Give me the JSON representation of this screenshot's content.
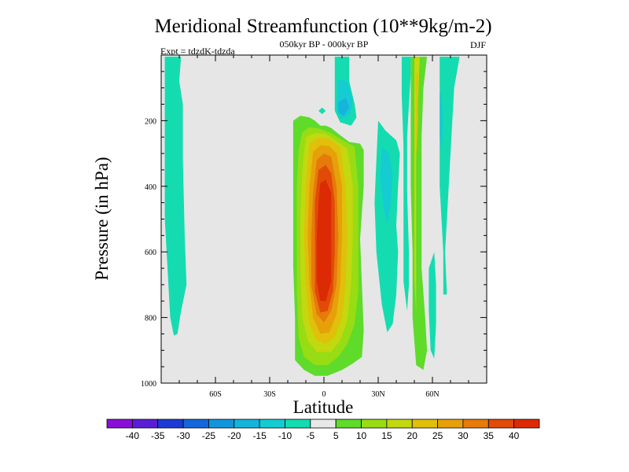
{
  "chart_data": {
    "type": "contour",
    "title": "Meridional Streamfunction (10**9kg/m-2)",
    "subtitle_center": "050kyr BP - 000kyr BP",
    "subtitle_left": "Expt = tdzdK-tdzda",
    "subtitle_right": "DJF",
    "xlabel": "Latitude",
    "ylabel": "Pressure (in hPa)",
    "xlim": [
      -90,
      90
    ],
    "ylim": [
      1000,
      0
    ],
    "xticks": [
      -60,
      -30,
      0,
      30,
      60
    ],
    "xtick_labels": [
      "60S",
      "30S",
      "0",
      "30N",
      "60N"
    ],
    "yticks": [
      200,
      400,
      600,
      800,
      1000
    ],
    "ytick_labels": [
      "200",
      "400",
      "600",
      "800",
      "1000"
    ],
    "background_color": "#e6e6e6",
    "colorbar": {
      "labels": [
        "-40",
        "-35",
        "-30",
        "-25",
        "-20",
        "-15",
        "-10",
        "-5",
        "5",
        "10",
        "15",
        "20",
        "25",
        "30",
        "35",
        "40"
      ],
      "colors": [
        "#8a0fd6",
        "#5a1ed6",
        "#1e3ad4",
        "#1466dc",
        "#1196dc",
        "#14b4dc",
        "#14ccd2",
        "#14dcb0",
        "#e8e8e8",
        "#5fdb2a",
        "#98dc14",
        "#c2d80f",
        "#e0c00a",
        "#e6a00a",
        "#e67a0a",
        "#e24a08",
        "#dc2a04"
      ]
    },
    "regions": [
      {
        "name": "south-polar-cell",
        "level": "-10 to -5",
        "color": "#14dcb0",
        "outline": [
          [
            -88,
            5
          ],
          [
            -79,
            5
          ],
          [
            -80,
            80
          ],
          [
            -78,
            150
          ],
          [
            -78,
            320
          ],
          [
            -77,
            550
          ],
          [
            -76,
            700
          ],
          [
            -79,
            780
          ],
          [
            -81,
            850
          ],
          [
            -83,
            855
          ],
          [
            -85,
            800
          ],
          [
            -86,
            700
          ],
          [
            -88,
            500
          ],
          [
            -88,
            200
          ]
        ]
      },
      {
        "name": "tropical-plume-outer",
        "level": "5 to 10",
        "color": "#5fdb2a",
        "outline": [
          [
            -17,
            200
          ],
          [
            -13,
            185
          ],
          [
            -8,
            190
          ],
          [
            -5,
            200
          ],
          [
            -2,
            215
          ],
          [
            1,
            215
          ],
          [
            4,
            222
          ],
          [
            8,
            240
          ],
          [
            14,
            265
          ],
          [
            20,
            270
          ],
          [
            22,
            290
          ],
          [
            22,
            400
          ],
          [
            20,
            560
          ],
          [
            21,
            700
          ],
          [
            22,
            840
          ],
          [
            21,
            920
          ],
          [
            16,
            940
          ],
          [
            10,
            960
          ],
          [
            2,
            978
          ],
          [
            -5,
            978
          ],
          [
            -11,
            960
          ],
          [
            -16,
            930
          ],
          [
            -16,
            800
          ],
          [
            -17,
            640
          ],
          [
            -17,
            450
          ],
          [
            -17,
            300
          ]
        ]
      },
      {
        "name": "tropical-plume-10",
        "level": "10 to 15",
        "color": "#98dc14",
        "outline": [
          [
            -12,
            235
          ],
          [
            -8,
            220
          ],
          [
            -2,
            225
          ],
          [
            4,
            238
          ],
          [
            10,
            258
          ],
          [
            17,
            280
          ],
          [
            19,
            400
          ],
          [
            19,
            560
          ],
          [
            19,
            720
          ],
          [
            17,
            820
          ],
          [
            13,
            880
          ],
          [
            8,
            920
          ],
          [
            2,
            945
          ],
          [
            -5,
            945
          ],
          [
            -11,
            920
          ],
          [
            -14,
            860
          ],
          [
            -15,
            720
          ],
          [
            -15,
            560
          ],
          [
            -15,
            400
          ],
          [
            -14,
            290
          ]
        ]
      },
      {
        "name": "tropical-plume-15",
        "level": "15 to 20",
        "color": "#c2d80f",
        "outline": [
          [
            -10,
            250
          ],
          [
            -5,
            238
          ],
          [
            1,
            240
          ],
          [
            7,
            262
          ],
          [
            13,
            285
          ],
          [
            16,
            400
          ],
          [
            16,
            550
          ],
          [
            15,
            700
          ],
          [
            13,
            810
          ],
          [
            9,
            870
          ],
          [
            4,
            905
          ],
          [
            -4,
            905
          ],
          [
            -9,
            870
          ],
          [
            -12,
            800
          ],
          [
            -13,
            650
          ],
          [
            -13,
            500
          ],
          [
            -12,
            350
          ]
        ]
      },
      {
        "name": "tropical-plume-20",
        "level": "20 to 25",
        "color": "#e0c00a",
        "outline": [
          [
            -8,
            270
          ],
          [
            -3,
            252
          ],
          [
            3,
            255
          ],
          [
            9,
            280
          ],
          [
            12,
            400
          ],
          [
            13,
            550
          ],
          [
            12,
            700
          ],
          [
            10,
            800
          ],
          [
            6,
            860
          ],
          [
            1,
            880
          ],
          [
            -4,
            870
          ],
          [
            -8,
            820
          ],
          [
            -10,
            700
          ],
          [
            -11,
            550
          ],
          [
            -10,
            400
          ]
        ]
      },
      {
        "name": "tropical-plume-25",
        "level": "25 to 30",
        "color": "#e6a00a",
        "outline": [
          [
            -6,
            295
          ],
          [
            -2,
            275
          ],
          [
            3,
            278
          ],
          [
            7,
            300
          ],
          [
            10,
            400
          ],
          [
            10,
            550
          ],
          [
            9,
            700
          ],
          [
            7,
            790
          ],
          [
            3,
            845
          ],
          [
            -2,
            850
          ],
          [
            -6,
            800
          ],
          [
            -8,
            700
          ],
          [
            -9,
            550
          ],
          [
            -8,
            400
          ]
        ]
      },
      {
        "name": "tropical-plume-30",
        "level": "30 to 35",
        "color": "#e67a0a",
        "outline": [
          [
            -4,
            320
          ],
          [
            0,
            300
          ],
          [
            4,
            310
          ],
          [
            7,
            400
          ],
          [
            8,
            550
          ],
          [
            7,
            700
          ],
          [
            4,
            780
          ],
          [
            0,
            815
          ],
          [
            -4,
            790
          ],
          [
            -7,
            700
          ],
          [
            -7,
            550
          ],
          [
            -6,
            420
          ]
        ]
      },
      {
        "name": "tropical-plume-35",
        "level": "35 to 40",
        "color": "#e24a08",
        "outline": [
          [
            -3,
            350
          ],
          [
            1,
            335
          ],
          [
            4,
            360
          ],
          [
            6,
            450
          ],
          [
            6,
            600
          ],
          [
            5,
            720
          ],
          [
            2,
            780
          ],
          [
            -2,
            785
          ],
          [
            -5,
            720
          ],
          [
            -5,
            600
          ],
          [
            -5,
            450
          ]
        ]
      },
      {
        "name": "tropical-core",
        "level": "> 40",
        "color": "#dc2a04",
        "outline": [
          [
            -2,
            390
          ],
          [
            1,
            380
          ],
          [
            4,
            420
          ],
          [
            4,
            560
          ],
          [
            4,
            690
          ],
          [
            1,
            750
          ],
          [
            -2,
            750
          ],
          [
            -4,
            690
          ],
          [
            -4,
            560
          ],
          [
            -3,
            450
          ]
        ]
      },
      {
        "name": "upper-equatorial-cell",
        "level": "-10 to -5",
        "color": "#14dcb0",
        "outline": [
          [
            6,
            5
          ],
          [
            14,
            5
          ],
          [
            14,
            80
          ],
          [
            17,
            150
          ],
          [
            18,
            190
          ],
          [
            15,
            215
          ],
          [
            9,
            205
          ],
          [
            6,
            170
          ],
          [
            6,
            100
          ]
        ]
      },
      {
        "name": "upper-equatorial-inner",
        "level": "-15 to -10",
        "color": "#14ccd2",
        "outline": [
          [
            8,
            75
          ],
          [
            13,
            80
          ],
          [
            16,
            140
          ],
          [
            14,
            185
          ],
          [
            9,
            195
          ],
          [
            7,
            160
          ]
        ]
      },
      {
        "name": "upper-equatorial-core",
        "level": "-20 to -15",
        "color": "#14b4dc",
        "outline": [
          [
            8,
            145
          ],
          [
            12,
            130
          ],
          [
            14,
            160
          ],
          [
            11,
            185
          ],
          [
            8,
            175
          ]
        ]
      },
      {
        "name": "equatorial-wisp",
        "level": "-10 to -5",
        "color": "#14dcb0",
        "outline": [
          [
            -3,
            170
          ],
          [
            -1,
            160
          ],
          [
            1,
            170
          ],
          [
            -1,
            180
          ]
        ]
      },
      {
        "name": "mid-latitude-north-cell",
        "level": "-10 to -5",
        "color": "#14dcb0",
        "outline": [
          [
            30,
            200
          ],
          [
            34,
            230
          ],
          [
            40,
            260
          ],
          [
            42,
            300
          ],
          [
            41,
            400
          ],
          [
            40,
            520
          ],
          [
            41,
            600
          ],
          [
            40,
            730
          ],
          [
            38,
            820
          ],
          [
            35,
            845
          ],
          [
            32,
            760
          ],
          [
            29,
            600
          ],
          [
            28,
            450
          ],
          [
            29,
            320
          ]
        ]
      },
      {
        "name": "mid-latitude-north-inner",
        "level": "-15 to -10",
        "color": "#14ccd2",
        "outline": [
          [
            32,
            280
          ],
          [
            36,
            300
          ],
          [
            38,
            360
          ],
          [
            37,
            450
          ],
          [
            35,
            520
          ],
          [
            33,
            460
          ],
          [
            31,
            380
          ]
        ]
      },
      {
        "name": "northern-cyan-streak",
        "level": "-10 to -5",
        "color": "#14dcb0",
        "outline": [
          [
            43,
            5
          ],
          [
            48,
            5
          ],
          [
            48,
            60
          ],
          [
            47,
            150
          ],
          [
            46,
            250
          ],
          [
            46,
            420
          ],
          [
            47,
            600
          ],
          [
            47,
            700
          ],
          [
            46,
            780
          ],
          [
            44,
            690
          ],
          [
            44,
            480
          ],
          [
            44,
            280
          ],
          [
            43,
            120
          ]
        ]
      },
      {
        "name": "northern-outer-streak",
        "level": "5 to 10",
        "color": "#5fdb2a",
        "outline": [
          [
            48,
            5
          ],
          [
            57,
            5
          ],
          [
            55,
            100
          ],
          [
            54,
            250
          ],
          [
            54,
            450
          ],
          [
            54,
            650
          ],
          [
            56,
            800
          ],
          [
            57,
            900
          ],
          [
            55,
            960
          ],
          [
            51,
            945
          ],
          [
            49,
            800
          ],
          [
            49,
            600
          ],
          [
            48,
            400
          ],
          [
            48,
            150
          ]
        ]
      },
      {
        "name": "northern-yellow-streak",
        "level": "10 to 15",
        "color": "#c2d80f",
        "outline": [
          [
            50,
            5
          ],
          [
            53,
            5
          ],
          [
            52,
            150
          ],
          [
            51,
            300
          ],
          [
            51,
            500
          ],
          [
            51,
            650
          ],
          [
            51,
            790
          ],
          [
            50,
            680
          ],
          [
            50,
            450
          ],
          [
            50,
            200
          ]
        ]
      },
      {
        "name": "northern-orange-streak",
        "level": "15 to 20",
        "color": "#e0c00a",
        "outline": [
          [
            51,
            60
          ],
          [
            52,
            60
          ],
          [
            52,
            200
          ],
          [
            51,
            320
          ],
          [
            51,
            200
          ]
        ]
      },
      {
        "name": "far-north-cell",
        "level": "-10 to -5",
        "color": "#14dcb0",
        "outline": [
          [
            64,
            5
          ],
          [
            75,
            5
          ],
          [
            72,
            100
          ],
          [
            70,
            300
          ],
          [
            69,
            400
          ],
          [
            68,
            500
          ],
          [
            67,
            600
          ],
          [
            68,
            730
          ],
          [
            66,
            730
          ],
          [
            66,
            600
          ],
          [
            64,
            400
          ],
          [
            64,
            200
          ]
        ]
      },
      {
        "name": "far-north-inner",
        "level": "-15 to -10",
        "color": "#14ccd2",
        "outline": [
          [
            64,
            120
          ],
          [
            65,
            110
          ],
          [
            66,
            200
          ],
          [
            65,
            300
          ],
          [
            64,
            250
          ]
        ]
      },
      {
        "name": "far-north-lower",
        "level": "-10 to -5",
        "color": "#14dcb0",
        "outline": [
          [
            58,
            650
          ],
          [
            61,
            600
          ],
          [
            62,
            700
          ],
          [
            62,
            820
          ],
          [
            61,
            925
          ],
          [
            59,
            900
          ],
          [
            58,
            780
          ]
        ]
      }
    ]
  }
}
